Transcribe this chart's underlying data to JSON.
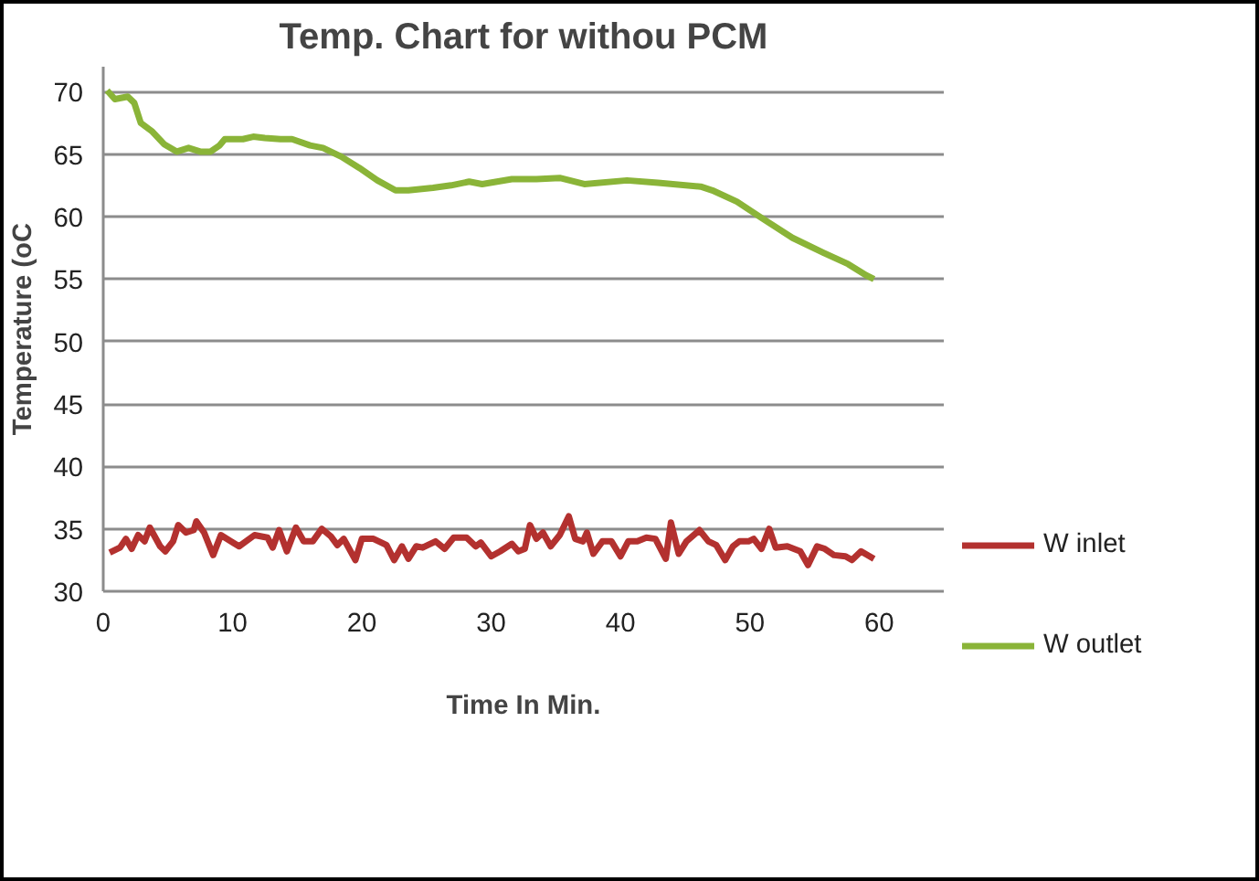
{
  "chart_data": {
    "type": "line",
    "title": "Temp. Chart for withou PCM",
    "xlabel": "Time In Min.",
    "ylabel": "Temperature (oC",
    "xlim": [
      0,
      65
    ],
    "xticks": [
      0,
      10,
      20,
      30,
      40,
      50,
      60
    ],
    "ylim": [
      30,
      72
    ],
    "yticks": [
      30,
      35,
      40,
      45,
      50,
      55,
      60,
      65,
      70
    ],
    "grid": "y",
    "legend": "right",
    "marker": "none",
    "line_style": "solid",
    "series": [
      {
        "name": "W inlet",
        "color": "#b3312f",
        "x": [
          0.5,
          1.3,
          1.75,
          2.2,
          2.7,
          3.2,
          3.6,
          4.4,
          4.8,
          5.4,
          5.8,
          6.4,
          7.0,
          7.2,
          7.8,
          8.5,
          9.1,
          10.5,
          11.7,
          12.7,
          13.1,
          13.6,
          14.2,
          14.9,
          15.5,
          16.2,
          16.9,
          17.6,
          18.1,
          18.6,
          19.5,
          20.0,
          20.9,
          21.9,
          22.5,
          23.1,
          23.6,
          24.2,
          24.7,
          25.7,
          26.4,
          27.1,
          28.1,
          28.8,
          29.2,
          30.0,
          30.7,
          31.6,
          32.1,
          32.6,
          33.0,
          33.5,
          34.0,
          34.6,
          35.3,
          36.0,
          36.5,
          37.1,
          37.4,
          37.9,
          38.6,
          39.3,
          40.0,
          40.6,
          41.3,
          42.0,
          42.7,
          43.5,
          43.9,
          44.5,
          45.1,
          46.1,
          46.8,
          47.4,
          48.1,
          48.7,
          49.2,
          49.9,
          50.3,
          50.9,
          51.5,
          52.0,
          52.9,
          53.9,
          54.5,
          55.2,
          55.8,
          56.5,
          57.4,
          57.9,
          58.6,
          59.6
        ],
        "values": [
          33.1,
          33.5,
          34.2,
          33.4,
          34.5,
          34.0,
          35.1,
          33.6,
          33.2,
          34.0,
          35.3,
          34.7,
          34.9,
          35.6,
          34.7,
          32.9,
          34.5,
          33.6,
          34.5,
          34.3,
          33.5,
          34.9,
          33.2,
          35.1,
          34.0,
          34.0,
          35.0,
          34.4,
          33.7,
          34.2,
          32.5,
          34.2,
          34.2,
          33.7,
          32.5,
          33.6,
          32.6,
          33.6,
          33.5,
          34.0,
          33.4,
          34.3,
          34.3,
          33.6,
          33.9,
          32.8,
          33.2,
          33.8,
          33.2,
          33.4,
          35.3,
          34.2,
          34.7,
          33.6,
          34.5,
          36.0,
          34.2,
          34.0,
          34.7,
          33.0,
          34.0,
          34.0,
          32.8,
          34.0,
          34.0,
          34.3,
          34.2,
          32.6,
          35.5,
          33.0,
          34.0,
          34.9,
          34.0,
          33.7,
          32.5,
          33.6,
          34.0,
          34.0,
          34.2,
          33.4,
          35.0,
          33.5,
          33.6,
          33.2,
          32.1,
          33.6,
          33.4,
          32.9,
          32.8,
          32.5,
          33.2,
          32.6
        ]
      },
      {
        "name": "W outlet",
        "color": "#8ab438",
        "x": [
          0.3,
          0.9,
          1.9,
          2.4,
          2.9,
          3.8,
          4.7,
          5.7,
          6.6,
          7.5,
          8.3,
          9.0,
          9.4,
          10.8,
          11.6,
          12.5,
          13.7,
          14.6,
          16.0,
          17.0,
          18.4,
          19.8,
          21.2,
          22.6,
          23.6,
          25.5,
          26.9,
          28.3,
          29.3,
          31.6,
          33.5,
          35.3,
          37.2,
          40.5,
          42.9,
          46.2,
          47.1,
          49.0,
          50.9,
          53.3,
          55.7,
          57.6,
          59.0,
          59.6
        ],
        "values": [
          70.1,
          69.4,
          69.6,
          69.1,
          67.5,
          66.8,
          65.8,
          65.2,
          65.5,
          65.2,
          65.2,
          65.7,
          66.2,
          66.2,
          66.4,
          66.3,
          66.2,
          66.2,
          65.7,
          65.5,
          64.8,
          63.9,
          62.9,
          62.1,
          62.1,
          62.3,
          62.5,
          62.8,
          62.6,
          63.0,
          63.0,
          63.1,
          62.6,
          62.9,
          62.7,
          62.4,
          62.1,
          61.2,
          59.9,
          58.3,
          57.1,
          56.2,
          55.3,
          55.0
        ]
      }
    ]
  }
}
